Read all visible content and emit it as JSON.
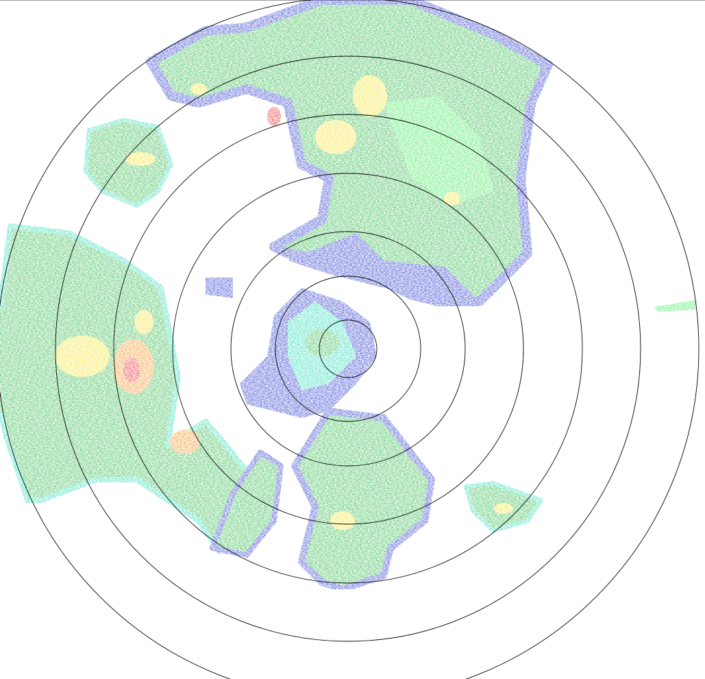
{
  "radar": {
    "ring_count": 7,
    "colors": {
      "weak": "#1626c8",
      "light": "#17d8b0",
      "moderate": "#1db33a",
      "bright_green": "#2ee84a",
      "heavy": "#f2e21a",
      "intense": "#f08a12",
      "extreme": "#e8141a",
      "ring": "#000000"
    }
  }
}
